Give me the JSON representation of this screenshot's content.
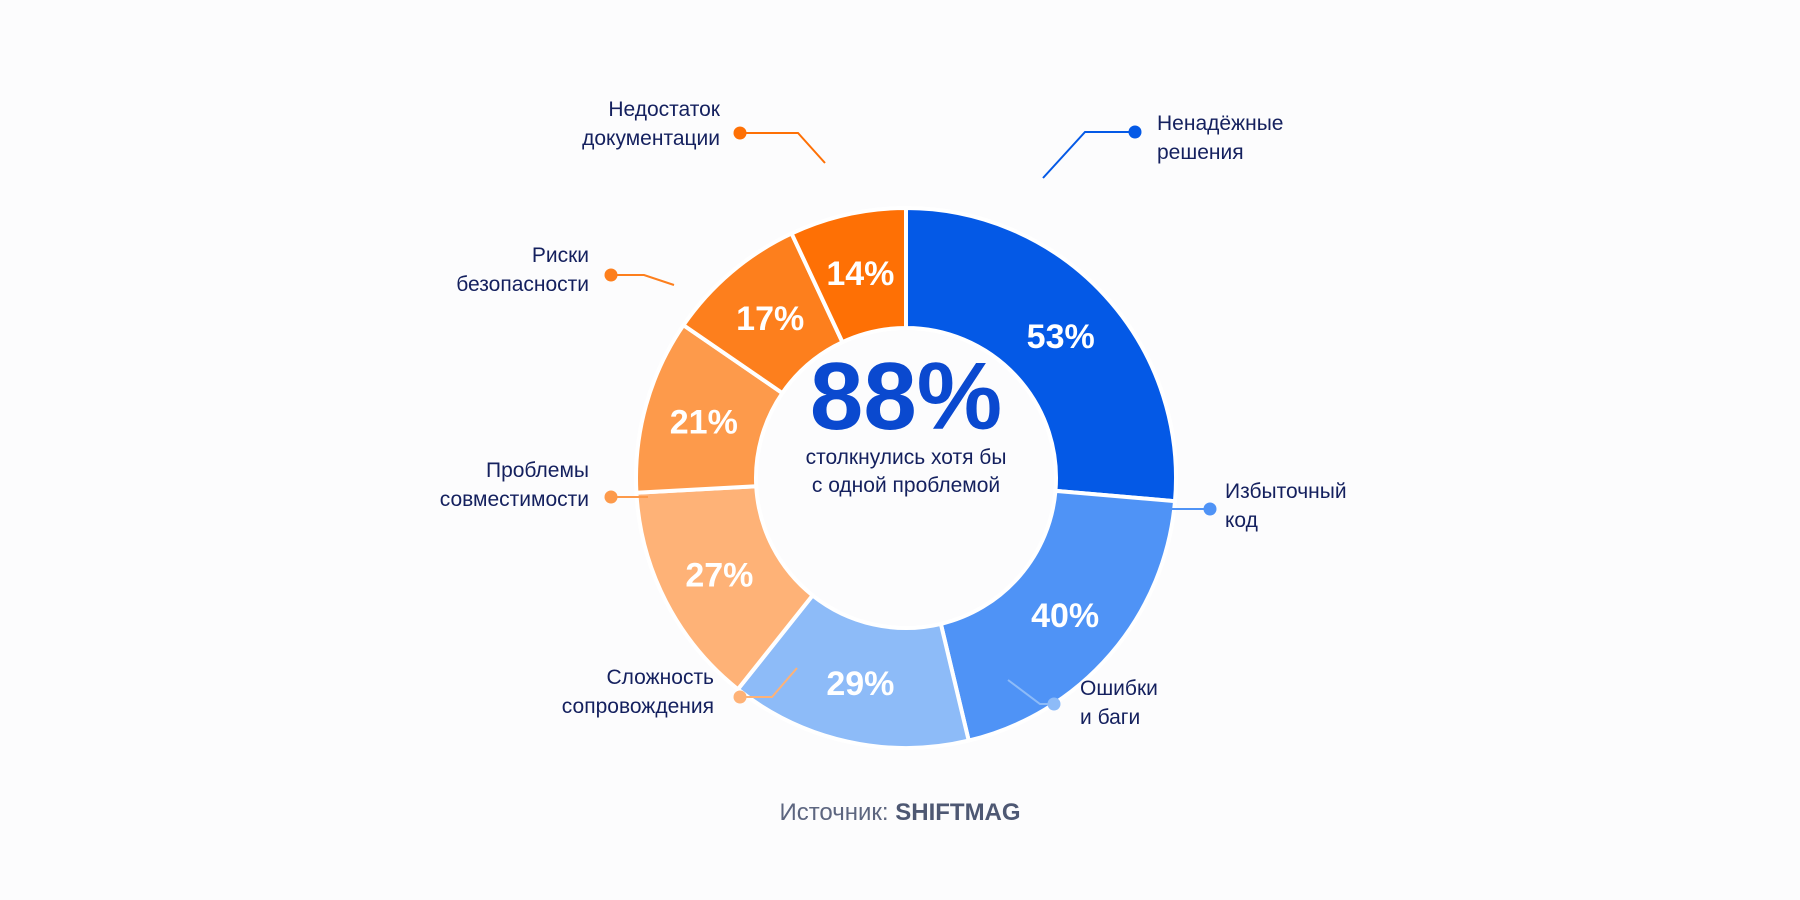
{
  "chart_data": {
    "type": "donut",
    "title": "",
    "center": {
      "value": "88%",
      "caption_lines": [
        "столкнулись хотя бы",
        "с одной проблемой"
      ]
    },
    "segments": [
      {
        "label_lines": [
          "Ненадёжные",
          "решения"
        ],
        "value": 53,
        "display": "53%",
        "color": "#0459e6"
      },
      {
        "label_lines": [
          "Избыточный",
          "код"
        ],
        "value": 40,
        "display": "40%",
        "color": "#4f93f6"
      },
      {
        "label_lines": [
          "Ошибки",
          "и баги"
        ],
        "value": 29,
        "display": "29%",
        "color": "#8dbbf8"
      },
      {
        "label_lines": [
          "Сложность",
          "сопровождения"
        ],
        "value": 27,
        "display": "27%",
        "color": "#feb277"
      },
      {
        "label_lines": [
          "Проблемы",
          "совместимости"
        ],
        "value": 21,
        "display": "21%",
        "color": "#fd9a4b"
      },
      {
        "label_lines": [
          "Риски",
          "безопасности"
        ],
        "value": 17,
        "display": "17%",
        "color": "#fd7f1d"
      },
      {
        "label_lines": [
          "Недостаток",
          "документации"
        ],
        "value": 14,
        "display": "14%",
        "color": "#fe7005"
      }
    ]
  },
  "source": {
    "prefix": "Источник:",
    "name": "SHIFTMAG"
  }
}
